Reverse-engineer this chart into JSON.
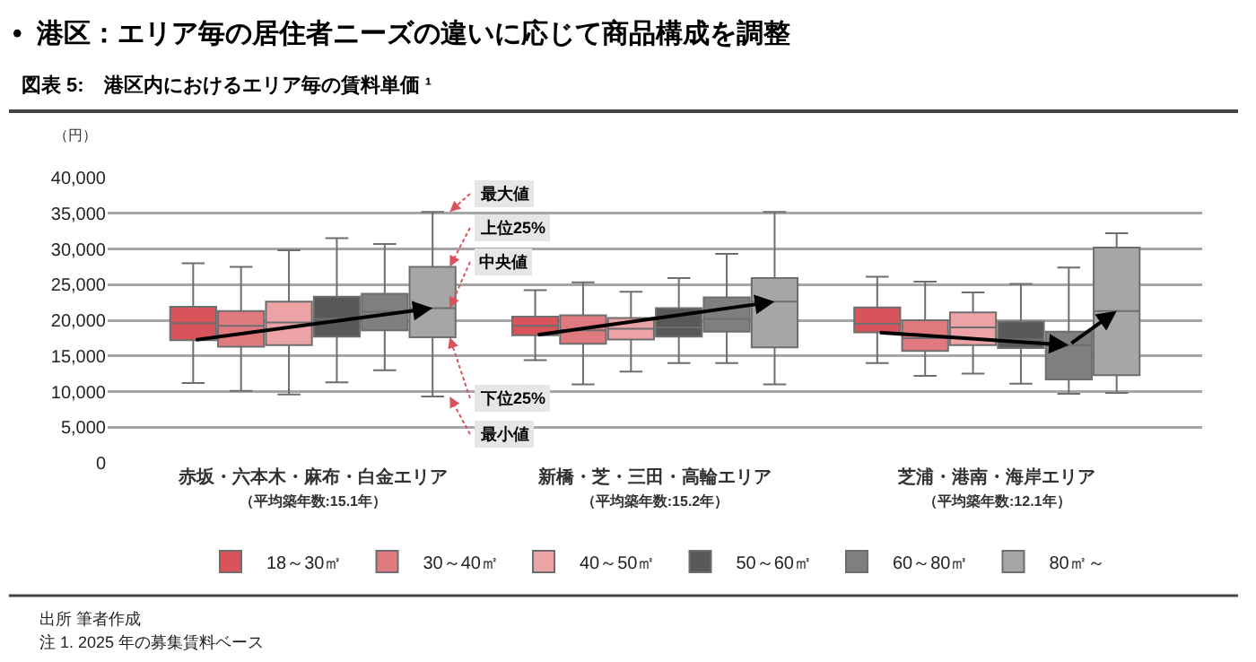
{
  "chart_data": {
    "type": "box",
    "title": "•  港区：エリア毎の居住者ニーズの違いに応じて商品構成を調整",
    "subtitle": "図表 5:　港区内におけるエリア毎の賃料単価 ¹",
    "ylabel": "（円）",
    "categories": [
      "赤坂・六本木・麻布・白金エリア（平均築年数:15.1年）",
      "新橋・芝・三田・高輪エリア（平均築年数:15.2年）",
      "芝浦・港南・海岸エリア（平均築年数:12.1年）"
    ],
    "ylim": [
      0,
      40000
    ],
    "yticks": [
      {
        "value": 0,
        "label": "0"
      },
      {
        "value": 5000,
        "label": "5,000"
      },
      {
        "value": 10000,
        "label": "10,000"
      },
      {
        "value": 15000,
        "label": "15,000"
      },
      {
        "value": 20000,
        "label": "20,000"
      },
      {
        "value": 25000,
        "label": "25,000"
      },
      {
        "value": 30000,
        "label": "30,000"
      },
      {
        "value": 35000,
        "label": "35,000"
      },
      {
        "value": 40000,
        "label": "40,000"
      }
    ],
    "grid": "y",
    "legend": "bottom",
    "series": [
      {
        "name": "18～30㎡",
        "color": "#d9545a",
        "boxes": [
          {
            "low": 11200,
            "q1": 17200,
            "median": 19600,
            "q3": 21900,
            "high": 28000
          },
          {
            "low": 14400,
            "q1": 17900,
            "median": 19200,
            "q3": 20500,
            "high": 24200
          },
          {
            "low": 14000,
            "q1": 18300,
            "median": 19500,
            "q3": 21800,
            "high": 26100
          }
        ]
      },
      {
        "name": "30～40㎡",
        "color": "#e07a7e",
        "boxes": [
          {
            "low": 10100,
            "q1": 16300,
            "median": 19200,
            "q3": 21300,
            "high": 27500
          },
          {
            "low": 11000,
            "q1": 16700,
            "median": 18600,
            "q3": 20700,
            "high": 25300
          },
          {
            "low": 12200,
            "q1": 15700,
            "median": 17500,
            "q3": 20000,
            "high": 25400
          }
        ]
      },
      {
        "name": "40～50㎡",
        "color": "#eba3a5",
        "boxes": [
          {
            "low": 9600,
            "q1": 16500,
            "median": 19700,
            "q3": 22600,
            "high": 29800
          },
          {
            "low": 12800,
            "q1": 17300,
            "median": 18800,
            "q3": 20300,
            "high": 24000
          },
          {
            "low": 12500,
            "q1": 16500,
            "median": 19000,
            "q3": 21100,
            "high": 23900
          }
        ]
      },
      {
        "name": "50～60㎡",
        "color": "#595959",
        "boxes": [
          {
            "low": 11300,
            "q1": 17700,
            "median": 20200,
            "q3": 23300,
            "high": 31500
          },
          {
            "low": 14000,
            "q1": 17700,
            "median": 19000,
            "q3": 21700,
            "high": 25900
          },
          {
            "low": 11100,
            "q1": 16100,
            "median": 17300,
            "q3": 19800,
            "high": 25100
          }
        ]
      },
      {
        "name": "60～80㎡",
        "color": "#7f7f7f",
        "boxes": [
          {
            "low": 13000,
            "q1": 18600,
            "median": 21200,
            "q3": 23700,
            "high": 30700
          },
          {
            "low": 14000,
            "q1": 18400,
            "median": 20200,
            "q3": 23200,
            "high": 29300
          },
          {
            "low": 9700,
            "q1": 11700,
            "median": 16500,
            "q3": 18400,
            "high": 27400
          }
        ]
      },
      {
        "name": "80㎡～",
        "color": "#a6a6a6",
        "boxes": [
          {
            "low": 9300,
            "q1": 17600,
            "median": 21700,
            "q3": 27500,
            "high": 35200
          },
          {
            "low": 11000,
            "q1": 16200,
            "median": 22600,
            "q3": 25900,
            "high": 35200
          },
          {
            "low": 9800,
            "q1": 12300,
            "median": 21300,
            "q3": 30200,
            "high": 32200
          }
        ]
      }
    ],
    "annotations": [
      "最大値",
      "上位25%",
      "中央値",
      "下位25%",
      "最小値",
      "出所 筆者作成",
      "注 1. 2025 年の募集賃料ベース"
    ]
  }
}
